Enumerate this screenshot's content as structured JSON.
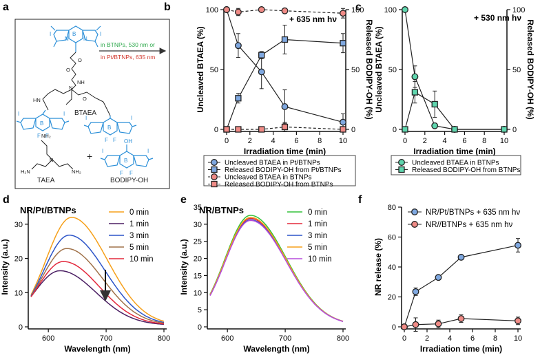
{
  "colors": {
    "blue": "#3d6fc4",
    "blue_fill": "#7fa8e0",
    "red": "#d24a48",
    "red_fill": "#f08b86",
    "green_text": "#2ca84a",
    "red_text": "#d23a30",
    "teal": "#49c9a0",
    "teal_fill": "#5fd6ae",
    "chem_blue": "#2b8fd8",
    "orange": "#f6a01a",
    "purple": "#4b1f63",
    "maroon": "#8a2a4a",
    "brown": "#a0724a",
    "crimson": "#e3283c",
    "green": "#33c23a",
    "bblue": "#2c54c8",
    "magenta": "#b64cdc"
  },
  "panel_a": {
    "label": "a",
    "btaea": "BTAEA",
    "taea": "TAEA",
    "bodipy_oh": "BODIPY-OH",
    "plus": "+",
    "arrow_top": "in BTNPs, 530 nm or",
    "arrow_bottom": "in Pt/BTNPs, 635 nm",
    "atoms": {
      "n": "N",
      "b": "B",
      "f": "F",
      "i": "I",
      "o": "O",
      "nh": "NH",
      "hn": "HN",
      "oh": "OH",
      "nh2": "NH₂",
      "h2n": "H₂N",
      "n_taea": "N"
    }
  },
  "chart_data": [
    {
      "id": "b",
      "label": "b",
      "type": "line",
      "annotation": "+ 635 nm hν",
      "xlabel": "Irradiation time (min)",
      "ylabel": "Uncleaved BTAEA (%)",
      "ylabel_right": "Released BODIPY-OH (%)",
      "xlim": [
        0,
        10
      ],
      "ylim": [
        0,
        100
      ],
      "xticks": [
        0,
        2,
        4,
        6,
        8,
        10
      ],
      "yticks": [
        0,
        50,
        100
      ],
      "series": [
        {
          "name": "Uncleaved BTAEA in Pt/BTNPs",
          "marker": "circle",
          "color": "blue",
          "dashed": false,
          "x": [
            0,
            1,
            3,
            5,
            10
          ],
          "y": [
            100,
            70,
            48,
            19,
            6
          ],
          "err": [
            0,
            10,
            14,
            14,
            7
          ]
        },
        {
          "name": "Released BODIPY-OH from Pt/BTNPs",
          "marker": "square",
          "color": "blue",
          "dashed": false,
          "x": [
            0,
            1,
            3,
            5,
            10
          ],
          "y": [
            0,
            26,
            62,
            75,
            72
          ],
          "err": [
            0,
            4,
            3,
            12,
            8
          ]
        },
        {
          "name": "Uncleaved BTAEA in BTNPs",
          "marker": "circle",
          "color": "red",
          "dashed": true,
          "x": [
            0,
            1,
            3,
            5,
            10
          ],
          "y": [
            100,
            98,
            100,
            99,
            97
          ],
          "err": [
            0,
            3,
            0,
            2,
            4
          ]
        },
        {
          "name": "Released BODIPY-OH from BTNPs",
          "marker": "square",
          "color": "red",
          "dashed": true,
          "x": [
            0,
            1,
            3,
            5,
            10
          ],
          "y": [
            0,
            0,
            0,
            2,
            0
          ],
          "err": [
            0,
            0,
            0,
            4,
            0
          ]
        }
      ]
    },
    {
      "id": "c",
      "label": "c",
      "type": "line",
      "annotation": "+ 530 nm hν",
      "xlabel": "Irradiation time (min)",
      "ylabel": "Uncleaved BTAEA (%)",
      "ylabel_right": "Released BODIPY-OH (%)",
      "xlim": [
        0,
        10
      ],
      "ylim": [
        0,
        100
      ],
      "xticks": [
        0,
        2,
        4,
        6,
        8,
        10
      ],
      "yticks": [
        0,
        50,
        100
      ],
      "series": [
        {
          "name": "Uncleaved BTAEA in BTNPs",
          "marker": "circle",
          "color": "teal",
          "dashed": false,
          "x": [
            0,
            1,
            3,
            5,
            10
          ],
          "y": [
            100,
            44,
            3,
            0,
            0
          ],
          "err": [
            0,
            9,
            2,
            1,
            0
          ]
        },
        {
          "name": "Released BODIPY-OH from BTNPs",
          "marker": "square",
          "color": "teal",
          "dashed": false,
          "x": [
            0,
            1,
            3,
            5,
            10
          ],
          "y": [
            0,
            31,
            21,
            0,
            0
          ],
          "err": [
            0,
            9,
            11,
            0,
            0
          ]
        }
      ]
    },
    {
      "id": "d",
      "label": "d",
      "type": "line",
      "title": "NR/Pt/BTNPs",
      "xlabel": "Wavelength (nm)",
      "ylabel": "Intensity (a.u.)",
      "xlim": [
        570,
        800
      ],
      "ylim": [
        0,
        35
      ],
      "xticks": [
        600,
        700,
        800
      ],
      "yticks": [
        0,
        10,
        20,
        30
      ],
      "series": [
        {
          "name": "0 min",
          "color": "orange",
          "peak": 31.5,
          "center": 640
        },
        {
          "name": "1 min",
          "color": "purple",
          "peak": 15.9,
          "center": 620
        },
        {
          "name": "3 min",
          "color": "bblue",
          "peak": 26.3,
          "center": 636
        },
        {
          "name": "5 min",
          "color": "brown",
          "peak": 22.4,
          "center": 632
        },
        {
          "name": "10 min",
          "color": "crimson",
          "peak": 18.6,
          "center": 626
        }
      ]
    },
    {
      "id": "e",
      "label": "e",
      "type": "line",
      "title": "NR/BTNPs",
      "xlabel": "Wavelength (nm)",
      "ylabel": "Intensity (a.u.)",
      "xlim": [
        570,
        800
      ],
      "ylim": [
        0,
        35
      ],
      "xticks": [
        600,
        700,
        800
      ],
      "yticks": [
        0,
        5,
        10,
        15,
        20,
        25,
        30,
        35
      ],
      "series": [
        {
          "name": "0 min",
          "color": "green",
          "peak": 32.1,
          "center": 640
        },
        {
          "name": "1 min",
          "color": "crimson",
          "peak": 31.2,
          "center": 640
        },
        {
          "name": "3 min",
          "color": "bblue",
          "peak": 30.8,
          "center": 640
        },
        {
          "name": "5 min",
          "color": "orange",
          "peak": 31.5,
          "center": 640
        },
        {
          "name": "10 min",
          "color": "magenta",
          "peak": 30.6,
          "center": 640
        }
      ]
    },
    {
      "id": "f",
      "label": "f",
      "type": "line",
      "xlabel": "Irradiation time (min)",
      "ylabel": "NR release (%)",
      "xlim": [
        0,
        10
      ],
      "ylim": [
        0,
        80
      ],
      "xticks": [
        0,
        2,
        4,
        6,
        8,
        10
      ],
      "yticks": [
        0,
        20,
        40,
        60,
        80
      ],
      "series": [
        {
          "name": "NR/Pt/BTNPs + 635 nm hν",
          "marker": "circle",
          "color": "blue",
          "x": [
            0,
            1,
            3,
            5,
            10
          ],
          "y": [
            0,
            23.5,
            33,
            46.5,
            54.5
          ],
          "err": [
            0,
            2.5,
            1,
            1.5,
            4.5
          ]
        },
        {
          "name": "NR//BTNPs + 635 nm hν",
          "marker": "circle",
          "color": "red",
          "x": [
            0,
            1,
            3,
            5,
            10
          ],
          "y": [
            0,
            1.5,
            2,
            5.5,
            4
          ],
          "err": [
            0,
            4.5,
            2.5,
            2.5,
            2.5
          ]
        }
      ]
    }
  ]
}
